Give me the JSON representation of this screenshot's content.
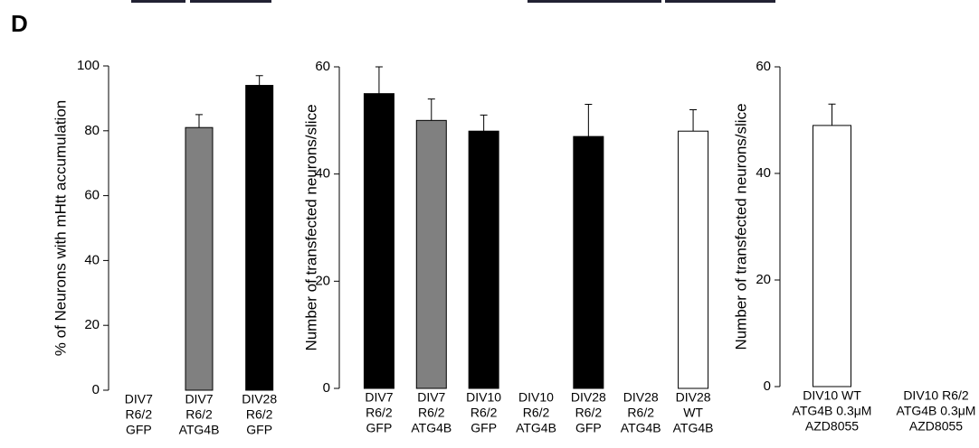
{
  "panel_label": "D",
  "chart_data": [
    {
      "type": "bar",
      "ylabel": "% of Neurons with mHtt accumulation",
      "categories": [
        [
          "DIV7",
          "R6/2",
          "GFP"
        ],
        [
          "DIV7",
          "R6/2",
          "ATG4B"
        ],
        [
          "DIV28",
          "R6/2",
          "GFP"
        ]
      ],
      "values": [
        0,
        81,
        94
      ],
      "errors": [
        null,
        4,
        3
      ],
      "colors": [
        "#000000",
        "#808080",
        "#000000"
      ],
      "ylim": [
        0,
        100
      ],
      "yticks": [
        0,
        20,
        40,
        60,
        80,
        100
      ]
    },
    {
      "type": "bar",
      "ylabel": "Number of transfected neurons/slice",
      "categories": [
        [
          "DIV7",
          "R6/2",
          "GFP"
        ],
        [
          "DIV7",
          "R6/2",
          "ATG4B"
        ],
        [
          "DIV10",
          "R6/2",
          "GFP"
        ],
        [
          "DIV10",
          "R6/2",
          "ATG4B"
        ],
        [
          "DIV28",
          "R6/2",
          "GFP"
        ],
        [
          "DIV28",
          "R6/2",
          "ATG4B"
        ],
        [
          "DIV28",
          "WT",
          "ATG4B"
        ]
      ],
      "values": [
        55,
        50,
        48,
        0,
        47,
        0,
        48
      ],
      "errors": [
        5,
        4,
        3,
        null,
        6,
        null,
        4
      ],
      "colors": [
        "#000000",
        "#808080",
        "#000000",
        "#000000",
        "#000000",
        "#000000",
        "#ffffff"
      ],
      "ylim": [
        0,
        60
      ],
      "yticks": [
        0,
        20,
        40,
        60
      ]
    },
    {
      "type": "bar",
      "ylabel": "Number of transfected neurons/slice",
      "categories": [
        [
          "DIV10 WT",
          "ATG4B 0.3μM",
          "AZD8055"
        ],
        [
          "DIV10 R6/2",
          "ATG4B 0.3μM",
          "AZD8055"
        ]
      ],
      "values": [
        49,
        0
      ],
      "errors": [
        4,
        null
      ],
      "colors": [
        "#ffffff",
        "#ffffff"
      ],
      "ylim": [
        0,
        60
      ],
      "yticks": [
        0,
        20,
        40,
        60
      ]
    }
  ]
}
